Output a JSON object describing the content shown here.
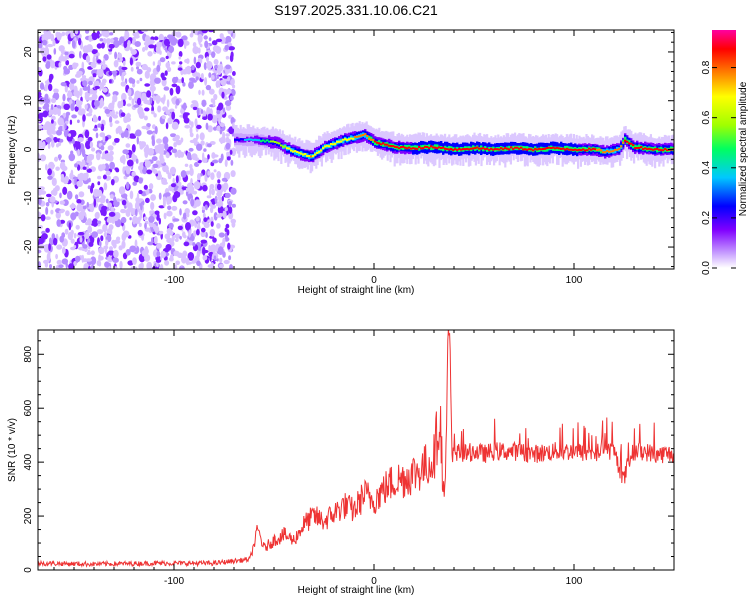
{
  "chart_data": [
    {
      "type": "heatmap",
      "title": "S197.2025.331.10.06.C21",
      "xlabel": "Height of straight line (km)",
      "ylabel": "Frequency (Hz)",
      "xlim": [
        -168,
        150
      ],
      "ylim": [
        -24.5,
        24.5
      ],
      "x_ticks": [
        -100,
        0,
        100
      ],
      "y_ticks": [
        -20,
        -10,
        0,
        10,
        20
      ],
      "noise_region_x": [
        -168,
        -70
      ],
      "ridge": {
        "x": [
          -70,
          -60,
          -50,
          -40,
          -32,
          -25,
          -15,
          -5,
          0,
          10,
          20,
          30,
          40,
          50,
          60,
          70,
          80,
          90,
          100,
          110,
          115,
          122,
          125,
          130,
          140,
          150
        ],
        "frequency": [
          2,
          2,
          1.5,
          -0.5,
          -1.5,
          0.5,
          2,
          3,
          1.5,
          0.5,
          0.3,
          0.5,
          0,
          0.3,
          0,
          0.3,
          0,
          0.3,
          0,
          0,
          -0.5,
          0,
          2,
          0.5,
          0,
          0
        ],
        "amplitude": [
          0.3,
          0.4,
          0.6,
          0.7,
          0.75,
          0.7,
          0.7,
          0.8,
          0.85,
          0.85,
          0.9,
          0.9,
          0.9,
          0.9,
          0.9,
          0.9,
          0.9,
          0.9,
          0.9,
          0.85,
          0.8,
          0.8,
          0.85,
          0.85,
          0.85,
          0.85
        ]
      },
      "colorbar": {
        "label": "Normalized spectral amplitude",
        "range": [
          0,
          0.95
        ],
        "ticks": [
          0.0,
          0.2,
          0.4,
          0.6,
          0.8
        ],
        "tick_labels": [
          "0.0",
          "0.2",
          "0.4",
          "0.6",
          "0.8"
        ],
        "colors": [
          "#ffffff",
          "#c9a2ff",
          "#8000ff",
          "#0000ff",
          "#00c8ff",
          "#00ff60",
          "#a0ff00",
          "#ffff00",
          "#ff8000",
          "#ff0000",
          "#ff00a0"
        ]
      }
    },
    {
      "type": "line",
      "xlabel": "Height of straight line (km)",
      "ylabel": "SNR (10 * v/v)",
      "xlim": [
        -168,
        150
      ],
      "ylim": [
        0,
        890
      ],
      "x_ticks": [
        -100,
        0,
        100
      ],
      "y_ticks": [
        0,
        200,
        400,
        600,
        800
      ],
      "color": "#ee3333",
      "series": [
        {
          "x": [
            -168,
            -140,
            -110,
            -80,
            -62,
            -58,
            -55,
            -50,
            -45,
            -40,
            -35,
            -30,
            -25,
            -20,
            -15,
            -10,
            -5,
            0,
            5,
            10,
            15,
            20,
            25,
            28,
            30,
            33,
            35,
            36,
            37,
            38,
            39,
            40,
            45,
            50,
            55,
            60,
            70,
            80,
            90,
            100,
            110,
            115,
            120,
            125,
            127,
            130,
            135,
            140,
            150
          ],
          "values": [
            25,
            22,
            25,
            25,
            40,
            150,
            80,
            110,
            130,
            110,
            170,
            200,
            180,
            210,
            240,
            220,
            280,
            260,
            300,
            330,
            340,
            360,
            380,
            400,
            420,
            580,
            250,
            380,
            880,
            850,
            400,
            440,
            430,
            440,
            430,
            440,
            440,
            430,
            440,
            440,
            430,
            445,
            440,
            330,
            400,
            440,
            440,
            430,
            430
          ]
        }
      ]
    }
  ]
}
